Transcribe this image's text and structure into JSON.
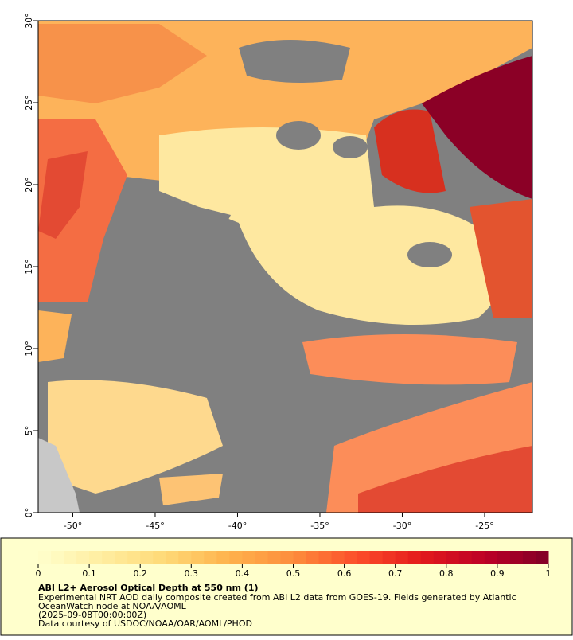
{
  "map": {
    "xlim": [
      -52.1,
      -22.1
    ],
    "ylim": [
      0,
      30
    ],
    "xticks": [
      {
        "value": -50,
        "label": "-50°"
      },
      {
        "value": -45,
        "label": "-45°"
      },
      {
        "value": -40,
        "label": "-40°"
      },
      {
        "value": -35,
        "label": "-35°"
      },
      {
        "value": -30,
        "label": "-30°"
      },
      {
        "value": -25,
        "label": "-25°"
      }
    ],
    "yticks": [
      {
        "value": 0,
        "label": "0°"
      },
      {
        "value": 5,
        "label": "5°"
      },
      {
        "value": 10,
        "label": "10°"
      },
      {
        "value": 15,
        "label": "15°"
      },
      {
        "value": 20,
        "label": "20°"
      },
      {
        "value": 25,
        "label": "25°"
      },
      {
        "value": 30,
        "label": "30°"
      }
    ]
  },
  "colorbar": {
    "range": [
      0,
      1
    ],
    "ticks": [
      0,
      0.1,
      0.2,
      0.3,
      0.4,
      0.5,
      0.6,
      0.7,
      0.8,
      0.9,
      1
    ],
    "colors": [
      "#ffffcc",
      "#ffeda0",
      "#fed976",
      "#feb24c",
      "#fd8d3c",
      "#fc4e2a",
      "#e31a1c",
      "#bd0026",
      "#800026"
    ]
  },
  "caption": {
    "title": "ABI L2+ Aerosol Optical Depth at 550 nm (1)",
    "lines": [
      "Experimental NRT AOD daily composite created from ABI L2 data from GOES-19. Fields generated by Atlantic",
      "OceanWatch node at NOAA/AOML",
      "(2025-09-08T00:00:00Z)",
      "Data courtesy of USDOC/NOAA/OAR/AOML/PHOD"
    ]
  }
}
